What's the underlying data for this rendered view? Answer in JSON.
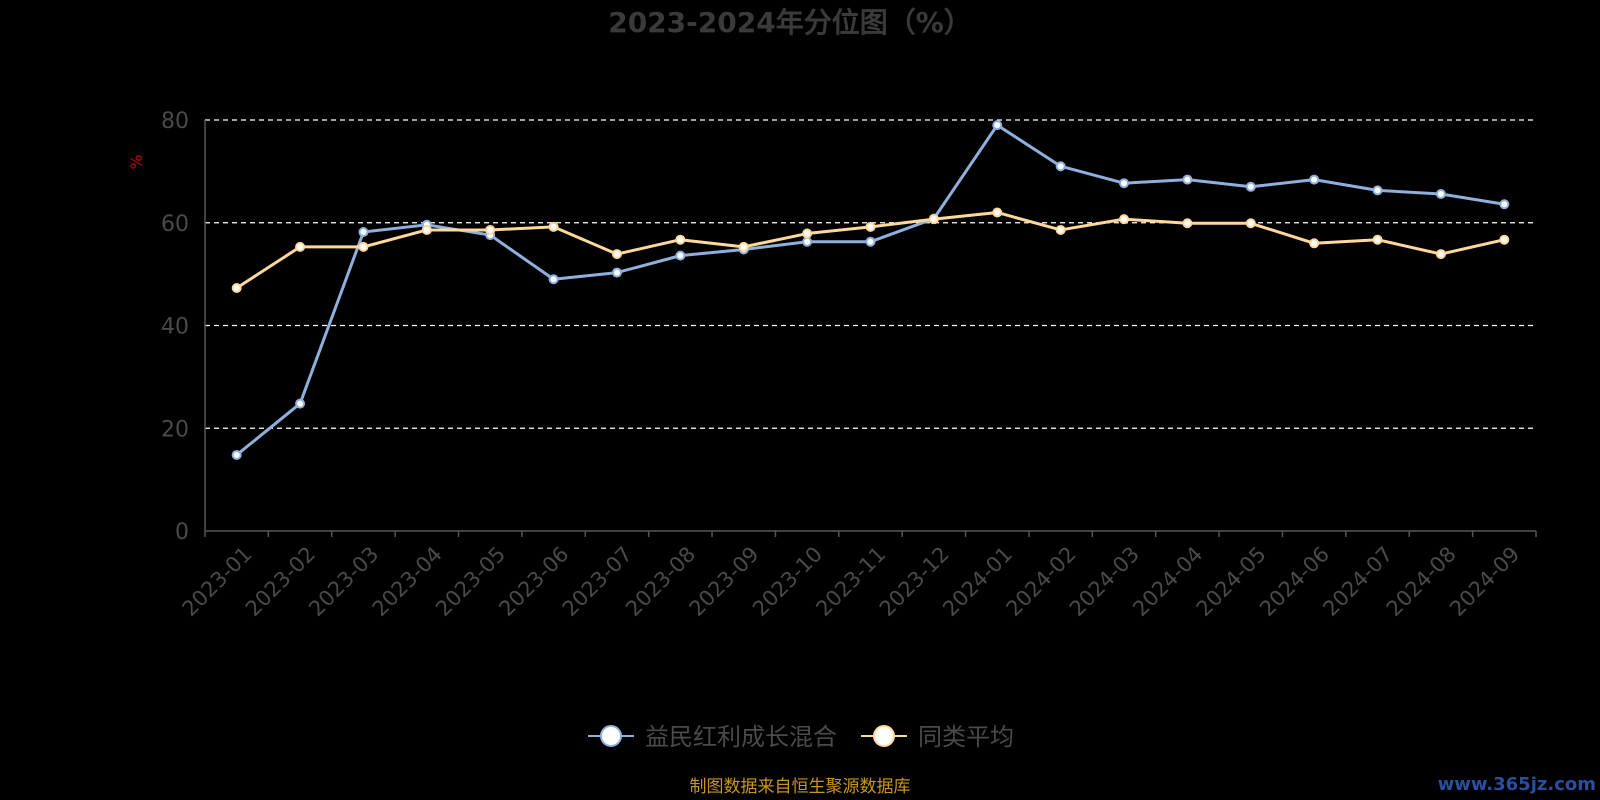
{
  "chart_data": {
    "type": "line",
    "title": "2023-2024年分位图（%）",
    "ylabel": "%",
    "xlabel": "",
    "ylim": [
      0,
      80
    ],
    "y_ticks": [
      0,
      20,
      40,
      60,
      80
    ],
    "grid": true,
    "legend_position": "bottom-center",
    "categories": [
      "2023-01",
      "2023-02",
      "2023-03",
      "2023-04",
      "2023-05",
      "2023-06",
      "2023-07",
      "2023-08",
      "2023-09",
      "2023-10",
      "2023-11",
      "2023-12",
      "2024-01",
      "2024-02",
      "2024-03",
      "2024-04",
      "2024-05",
      "2024-06",
      "2024-07",
      "2024-08",
      "2024-09"
    ],
    "series": [
      {
        "name": "益民红利成长混合",
        "color": "#8fb0dc",
        "values": [
          14.8,
          24.8,
          58.2,
          59.6,
          57.6,
          49.0,
          50.3,
          53.6,
          54.8,
          56.3,
          56.3,
          60.8,
          79.0,
          71.0,
          67.7,
          68.4,
          67.0,
          68.4,
          66.3,
          65.6,
          63.6
        ]
      },
      {
        "name": "同类平均",
        "color": "#ffd89a",
        "values": [
          47.3,
          55.3,
          55.3,
          58.6,
          58.6,
          59.2,
          53.9,
          56.7,
          55.3,
          57.9,
          59.2,
          60.7,
          62.0,
          58.6,
          60.7,
          59.9,
          59.9,
          56.0,
          56.7,
          53.9,
          56.7
        ]
      }
    ]
  },
  "footer": {
    "source": "制图数据来自恒生聚源数据库",
    "watermark": "www.365jz.com"
  }
}
